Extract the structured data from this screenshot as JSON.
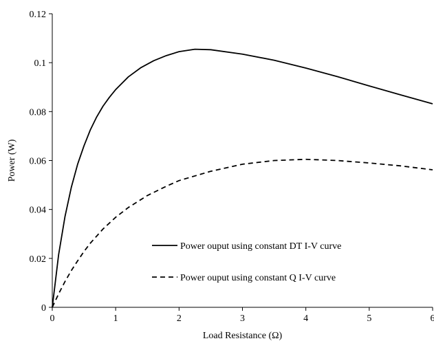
{
  "chart_data": {
    "type": "line",
    "xlabel": "Load Resistance (Ω)",
    "ylabel": "Power (W)",
    "xlim": [
      0,
      6
    ],
    "ylim": [
      0,
      0.12
    ],
    "xticks": [
      "0",
      "1",
      "2",
      "3",
      "4",
      "5",
      "6"
    ],
    "yticks": [
      "0",
      "0.02",
      "0.04",
      "0.06",
      "0.08",
      "0.1",
      "0.12"
    ],
    "grid": false,
    "legend_position": "bottom-center",
    "series": [
      {
        "name": "Power ouput using constant DT I-V curve",
        "line_style": "solid",
        "color": "#000000",
        "x": [
          0,
          0.1,
          0.2,
          0.3,
          0.4,
          0.5,
          0.6,
          0.7,
          0.8,
          0.9,
          1.0,
          1.2,
          1.4,
          1.6,
          1.8,
          2.0,
          2.25,
          2.5,
          3.0,
          3.5,
          4.0,
          4.5,
          5.0,
          5.5,
          6.0
        ],
        "y": [
          0,
          0.0215,
          0.037,
          0.049,
          0.0585,
          0.066,
          0.0725,
          0.0778,
          0.0822,
          0.0858,
          0.089,
          0.0942,
          0.098,
          0.1008,
          0.1029,
          0.1045,
          0.1055,
          0.1053,
          0.1035,
          0.101,
          0.0978,
          0.0943,
          0.0905,
          0.0868,
          0.0832
        ]
      },
      {
        "name": "Power ouput using constant Q I-V curve",
        "line_style": "dashed",
        "color": "#000000",
        "x": [
          0,
          0.1,
          0.2,
          0.3,
          0.4,
          0.5,
          0.6,
          0.8,
          1.0,
          1.2,
          1.5,
          1.8,
          2.0,
          2.5,
          3.0,
          3.5,
          4.0,
          4.5,
          5.0,
          5.5,
          6.0
        ],
        "y": [
          0,
          0.0055,
          0.0105,
          0.015,
          0.019,
          0.0228,
          0.0262,
          0.032,
          0.0368,
          0.0408,
          0.0457,
          0.0495,
          0.0518,
          0.0556,
          0.0585,
          0.06,
          0.0605,
          0.06,
          0.059,
          0.0578,
          0.0562
        ]
      }
    ]
  }
}
